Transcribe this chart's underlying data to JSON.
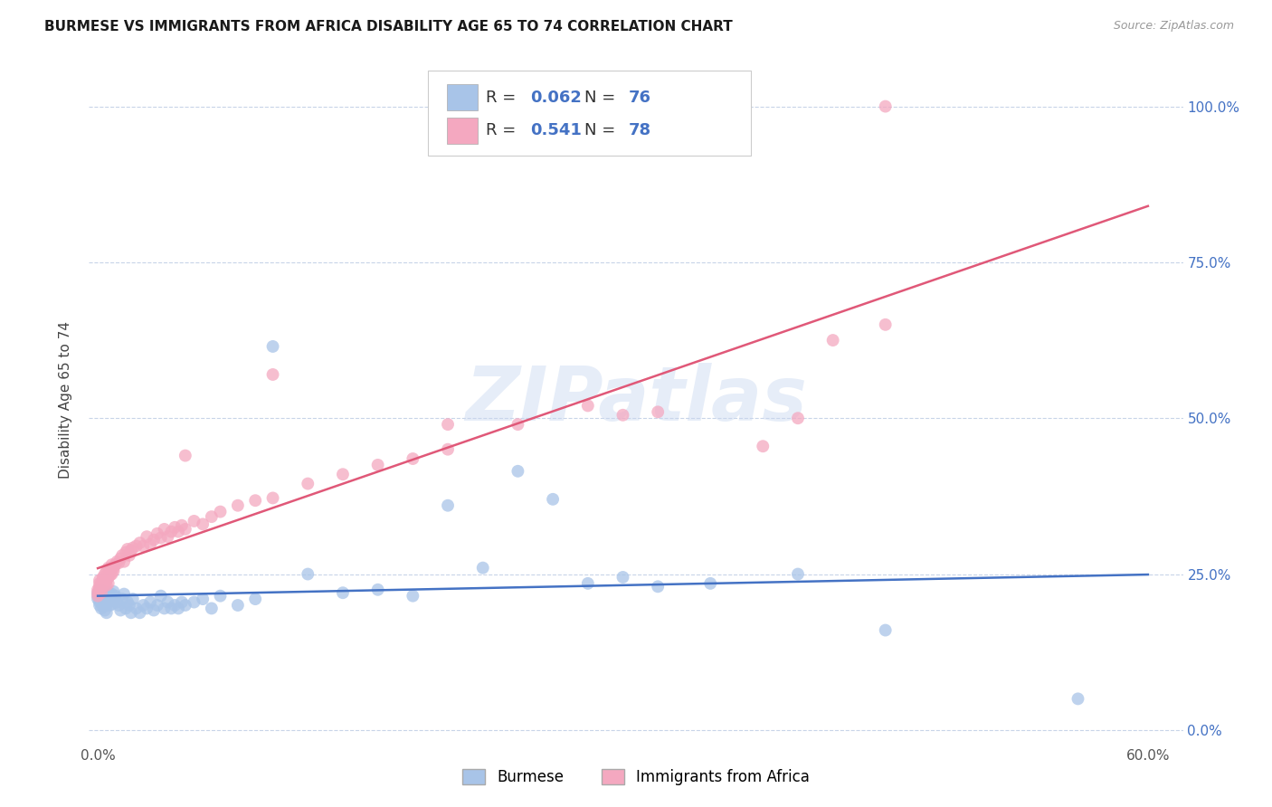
{
  "title": "BURMESE VS IMMIGRANTS FROM AFRICA DISABILITY AGE 65 TO 74 CORRELATION CHART",
  "source": "Source: ZipAtlas.com",
  "ylabel": "Disability Age 65 to 74",
  "xlim": [
    -0.005,
    0.62
  ],
  "ylim": [
    -0.02,
    1.08
  ],
  "xticks": [
    0.0,
    0.1,
    0.2,
    0.3,
    0.4,
    0.5,
    0.6
  ],
  "xticklabels": [
    "0.0%",
    "",
    "",
    "",
    "",
    "",
    "60.0%"
  ],
  "yticks_right": [
    0.0,
    0.25,
    0.5,
    0.75,
    1.0
  ],
  "ytick_labels_right": [
    "0.0%",
    "25.0%",
    "50.0%",
    "75.0%",
    "100.0%"
  ],
  "legend_R_blue": "0.062",
  "legend_N_blue": "76",
  "legend_R_pink": "0.541",
  "legend_N_pink": "78",
  "burmese_color": "#a8c4e8",
  "africa_color": "#f4a8c0",
  "burmese_line_color": "#4472c4",
  "africa_line_color": "#e05878",
  "watermark": "ZIPatlas",
  "background_color": "#ffffff",
  "grid_color": "#c8d4e8",
  "burmese_label": "Burmese",
  "africa_label": "Immigrants from Africa",
  "burmese_x": [
    0.0,
    0.0,
    0.0,
    0.001,
    0.001,
    0.001,
    0.001,
    0.001,
    0.002,
    0.002,
    0.002,
    0.003,
    0.003,
    0.003,
    0.004,
    0.004,
    0.004,
    0.005,
    0.005,
    0.005,
    0.006,
    0.006,
    0.007,
    0.007,
    0.008,
    0.008,
    0.009,
    0.009,
    0.01,
    0.011,
    0.012,
    0.013,
    0.014,
    0.015,
    0.016,
    0.017,
    0.018,
    0.019,
    0.02,
    0.022,
    0.024,
    0.026,
    0.028,
    0.03,
    0.032,
    0.034,
    0.036,
    0.038,
    0.04,
    0.042,
    0.044,
    0.046,
    0.048,
    0.05,
    0.055,
    0.06,
    0.065,
    0.07,
    0.08,
    0.09,
    0.1,
    0.12,
    0.14,
    0.16,
    0.18,
    0.2,
    0.22,
    0.24,
    0.26,
    0.28,
    0.3,
    0.32,
    0.35,
    0.4,
    0.45,
    0.56
  ],
  "burmese_y": [
    0.22,
    0.215,
    0.21,
    0.225,
    0.218,
    0.212,
    0.205,
    0.2,
    0.215,
    0.208,
    0.195,
    0.222,
    0.21,
    0.198,
    0.218,
    0.205,
    0.192,
    0.215,
    0.2,
    0.188,
    0.22,
    0.205,
    0.215,
    0.2,
    0.218,
    0.202,
    0.222,
    0.208,
    0.215,
    0.205,
    0.2,
    0.192,
    0.21,
    0.218,
    0.195,
    0.205,
    0.2,
    0.188,
    0.21,
    0.195,
    0.188,
    0.2,
    0.195,
    0.205,
    0.192,
    0.2,
    0.215,
    0.195,
    0.205,
    0.195,
    0.2,
    0.195,
    0.205,
    0.2,
    0.205,
    0.21,
    0.195,
    0.215,
    0.2,
    0.21,
    0.615,
    0.25,
    0.22,
    0.225,
    0.215,
    0.36,
    0.26,
    0.415,
    0.37,
    0.235,
    0.245,
    0.23,
    0.235,
    0.25,
    0.16,
    0.05
  ],
  "africa_x": [
    0.0,
    0.0,
    0.0,
    0.001,
    0.001,
    0.001,
    0.001,
    0.002,
    0.002,
    0.002,
    0.003,
    0.003,
    0.003,
    0.004,
    0.004,
    0.004,
    0.005,
    0.005,
    0.005,
    0.006,
    0.006,
    0.006,
    0.007,
    0.007,
    0.008,
    0.008,
    0.009,
    0.009,
    0.01,
    0.011,
    0.012,
    0.013,
    0.014,
    0.015,
    0.016,
    0.017,
    0.018,
    0.019,
    0.02,
    0.022,
    0.024,
    0.026,
    0.028,
    0.03,
    0.032,
    0.034,
    0.036,
    0.038,
    0.04,
    0.042,
    0.044,
    0.046,
    0.048,
    0.05,
    0.055,
    0.06,
    0.065,
    0.07,
    0.08,
    0.09,
    0.1,
    0.12,
    0.14,
    0.16,
    0.18,
    0.2,
    0.24,
    0.28,
    0.32,
    0.38,
    0.42,
    0.45,
    0.05,
    0.1,
    0.2,
    0.3,
    0.4,
    0.45
  ],
  "africa_y": [
    0.225,
    0.22,
    0.215,
    0.24,
    0.23,
    0.225,
    0.235,
    0.228,
    0.235,
    0.22,
    0.242,
    0.23,
    0.245,
    0.235,
    0.25,
    0.238,
    0.24,
    0.232,
    0.255,
    0.245,
    0.26,
    0.235,
    0.248,
    0.255,
    0.25,
    0.265,
    0.255,
    0.26,
    0.265,
    0.27,
    0.268,
    0.275,
    0.28,
    0.27,
    0.285,
    0.29,
    0.28,
    0.288,
    0.292,
    0.295,
    0.3,
    0.295,
    0.31,
    0.298,
    0.305,
    0.315,
    0.308,
    0.322,
    0.31,
    0.318,
    0.325,
    0.318,
    0.328,
    0.322,
    0.335,
    0.33,
    0.342,
    0.35,
    0.36,
    0.368,
    0.372,
    0.395,
    0.41,
    0.425,
    0.435,
    0.45,
    0.49,
    0.52,
    0.51,
    0.455,
    0.625,
    1.0,
    0.44,
    0.57,
    0.49,
    0.505,
    0.5,
    0.65
  ]
}
